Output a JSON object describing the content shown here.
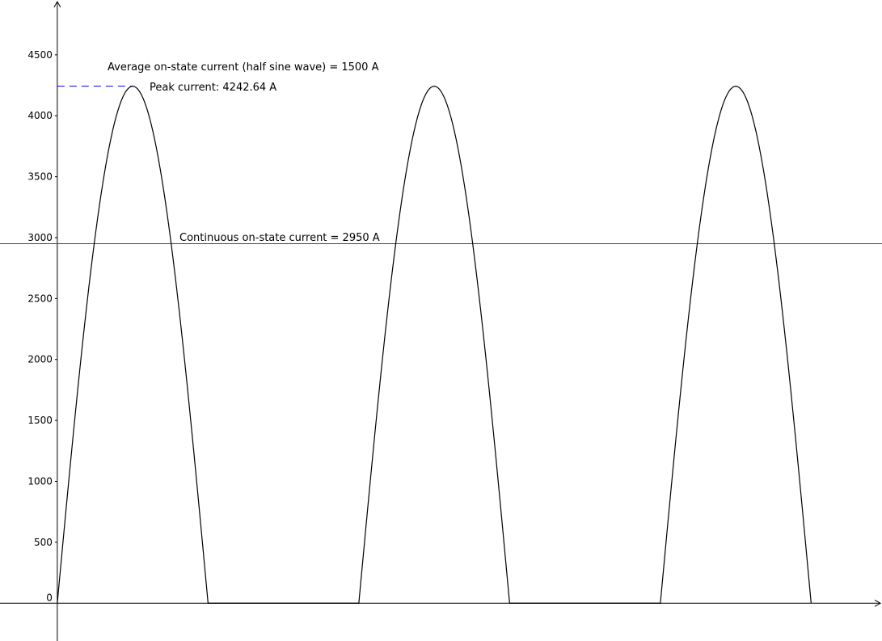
{
  "chart_data": {
    "type": "line",
    "title": "",
    "xlabel": "",
    "ylabel": "",
    "ylim": [
      -310,
      4950
    ],
    "yticks": [
      0,
      500,
      1000,
      1500,
      2000,
      2500,
      3000,
      3500,
      4000,
      4500
    ],
    "grid": false,
    "series": [
      {
        "kind": "half-sine-pulses",
        "color": "#000000",
        "peak": 4242.64,
        "pulses": [
          {
            "start": 0,
            "end": 2
          },
          {
            "start": 4,
            "end": 6
          },
          {
            "start": 8,
            "end": 10
          }
        ],
        "x_range": [
          -0.76,
          10.94
        ]
      }
    ],
    "reference_lines": [
      {
        "kind": "horizontal",
        "value": 2950,
        "color": "#e00000",
        "style": "solid"
      },
      {
        "kind": "horizontal-segment",
        "value": 4242.64,
        "x_from": 0,
        "x_to": 1,
        "color": "#0000e0",
        "style": "dashed"
      }
    ],
    "annotations": [
      {
        "id": "avg",
        "text": "Average on-state current (half sine wave) = 1500 A"
      },
      {
        "id": "peak",
        "text": "Peak current: 4242.64 A"
      },
      {
        "id": "cont",
        "text": "Continuous on-state current = 2950 A"
      }
    ]
  }
}
